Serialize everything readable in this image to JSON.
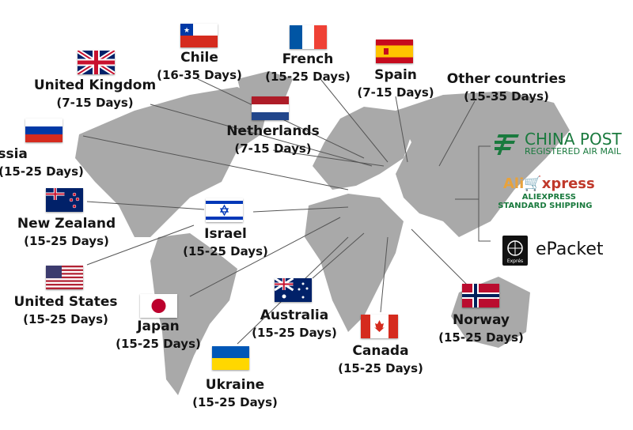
{
  "destinations": [
    {
      "name": "Chile",
      "days": "(16-35 Days)",
      "flag": "chile"
    },
    {
      "name": "United Kingdom",
      "days": "(7-15 Days)",
      "flag": "uk"
    },
    {
      "name": "French",
      "days": "(15-25 Days)",
      "flag": "france"
    },
    {
      "name": "Spain",
      "days": "(7-15 Days)",
      "flag": "spain"
    },
    {
      "name": "Other countries",
      "days": "(15-35 Days)",
      "flag": ""
    },
    {
      "name": "Netherlands",
      "days": "(7-15 Days)",
      "flag": "netherlands"
    },
    {
      "name": "Russia",
      "days": "(15-25 Days)",
      "flag": "russia"
    },
    {
      "name": "New Zealand",
      "days": "(15-25 Days)",
      "flag": "new-zealand"
    },
    {
      "name": "Israel",
      "days": "(15-25 Days)",
      "flag": "israel"
    },
    {
      "name": "United States",
      "days": "(15-25 Days)",
      "flag": "usa"
    },
    {
      "name": "Japan",
      "days": "(15-25 Days)",
      "flag": "japan"
    },
    {
      "name": "Australia",
      "days": "(15-25 Days)",
      "flag": "australia"
    },
    {
      "name": "Ukraine",
      "days": "(15-25 Days)",
      "flag": "ukraine"
    },
    {
      "name": "Canada",
      "days": "(15-25 Days)",
      "flag": "canada"
    },
    {
      "name": "Norway",
      "days": "(15-25 Days)",
      "flag": "norway"
    }
  ],
  "carriers": {
    "china_post": {
      "title": "CHINA POST",
      "subtitle": "REGISTERED AIR MAIL",
      "color": "#1a7a3e"
    },
    "aliexpress": {
      "logo": "AliExpress",
      "line1": "ALIEXPRESS",
      "line2": "STANDARD SHIPPING",
      "color": "#c0392b"
    },
    "epacket": {
      "title": "ePacket",
      "badge": "Exprés"
    }
  },
  "colors": {
    "land": "#a9a9a9",
    "lines": "#555555"
  }
}
